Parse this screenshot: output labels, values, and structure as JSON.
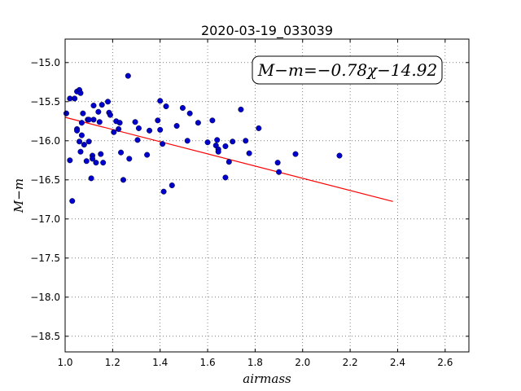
{
  "chart_data": {
    "type": "scatter",
    "title": "2020-03-19_033039",
    "xlabel": "airmass",
    "ylabel": "M−m",
    "xlim": [
      1.0,
      2.7
    ],
    "ylim": [
      -18.7,
      -14.7
    ],
    "y_inverted": true,
    "grid": true,
    "grid_style": "dotted",
    "x_ticks": [
      1.0,
      1.2,
      1.4,
      1.6,
      1.8,
      2.0,
      2.2,
      2.4,
      2.6
    ],
    "x_tick_labels": [
      "1.0",
      "1.2",
      "1.4",
      "1.6",
      "1.8",
      "2.0",
      "2.2",
      "2.4",
      "2.6"
    ],
    "y_ticks": [
      -15.0,
      -15.5,
      -16.0,
      -16.5,
      -17.0,
      -17.5,
      -18.0,
      -18.5
    ],
    "y_tick_labels": [
      "−15.0",
      "−15.5",
      "−16.0",
      "−16.5",
      "−17.0",
      "−17.5",
      "−18.0",
      "−18.5"
    ],
    "annotation": "M−m=−0.78χ−14.92",
    "annotation_location": "top-right",
    "colors": {
      "points": "#0000cc",
      "fit_line": "#ff0000"
    },
    "fit_line": {
      "slope": -0.78,
      "intercept": -14.92,
      "x_range": [
        1.0,
        2.38
      ]
    },
    "points": {
      "x": [
        1.005,
        1.02,
        1.02,
        1.03,
        1.04,
        1.05,
        1.05,
        1.05,
        1.06,
        1.06,
        1.065,
        1.065,
        1.07,
        1.07,
        1.075,
        1.08,
        1.09,
        1.095,
        1.1,
        1.1,
        1.11,
        1.115,
        1.115,
        1.12,
        1.12,
        1.13,
        1.14,
        1.145,
        1.15,
        1.155,
        1.16,
        1.18,
        1.185,
        1.19,
        1.205,
        1.215,
        1.225,
        1.23,
        1.235,
        1.245,
        1.265,
        1.27,
        1.295,
        1.305,
        1.31,
        1.345,
        1.355,
        1.39,
        1.4,
        1.4,
        1.41,
        1.415,
        1.425,
        1.45,
        1.47,
        1.495,
        1.515,
        1.525,
        1.56,
        1.6,
        1.62,
        1.635,
        1.64,
        1.645,
        1.645,
        1.675,
        1.675,
        1.69,
        1.705,
        1.74,
        1.76,
        1.775,
        1.815,
        1.895,
        1.9,
        1.97,
        2.155
      ],
      "y": [
        -15.65,
        -16.25,
        -15.46,
        -16.77,
        -15.46,
        -15.37,
        -15.85,
        -15.87,
        -16.01,
        -15.35,
        -15.39,
        -16.14,
        -15.93,
        -15.77,
        -15.65,
        -16.05,
        -16.26,
        -15.73,
        -15.73,
        -16.01,
        -16.48,
        -16.19,
        -16.23,
        -15.73,
        -15.55,
        -16.28,
        -15.63,
        -15.76,
        -16.17,
        -15.54,
        -16.28,
        -15.5,
        -15.64,
        -15.67,
        -15.89,
        -15.75,
        -15.85,
        -15.77,
        -16.15,
        -16.5,
        -15.17,
        -16.23,
        -15.76,
        -15.99,
        -15.84,
        -16.18,
        -15.87,
        -15.74,
        -15.86,
        -15.49,
        -16.04,
        -16.65,
        -15.56,
        -16.57,
        -15.81,
        -15.58,
        -16.0,
        -15.65,
        -15.77,
        -16.02,
        -15.74,
        -16.06,
        -15.99,
        -16.11,
        -16.14,
        -16.47,
        -16.07,
        -16.27,
        -16.01,
        -15.6,
        -16.0,
        -16.16,
        -15.84,
        -16.28,
        -16.4,
        -16.17,
        -16.19
      ]
    }
  }
}
